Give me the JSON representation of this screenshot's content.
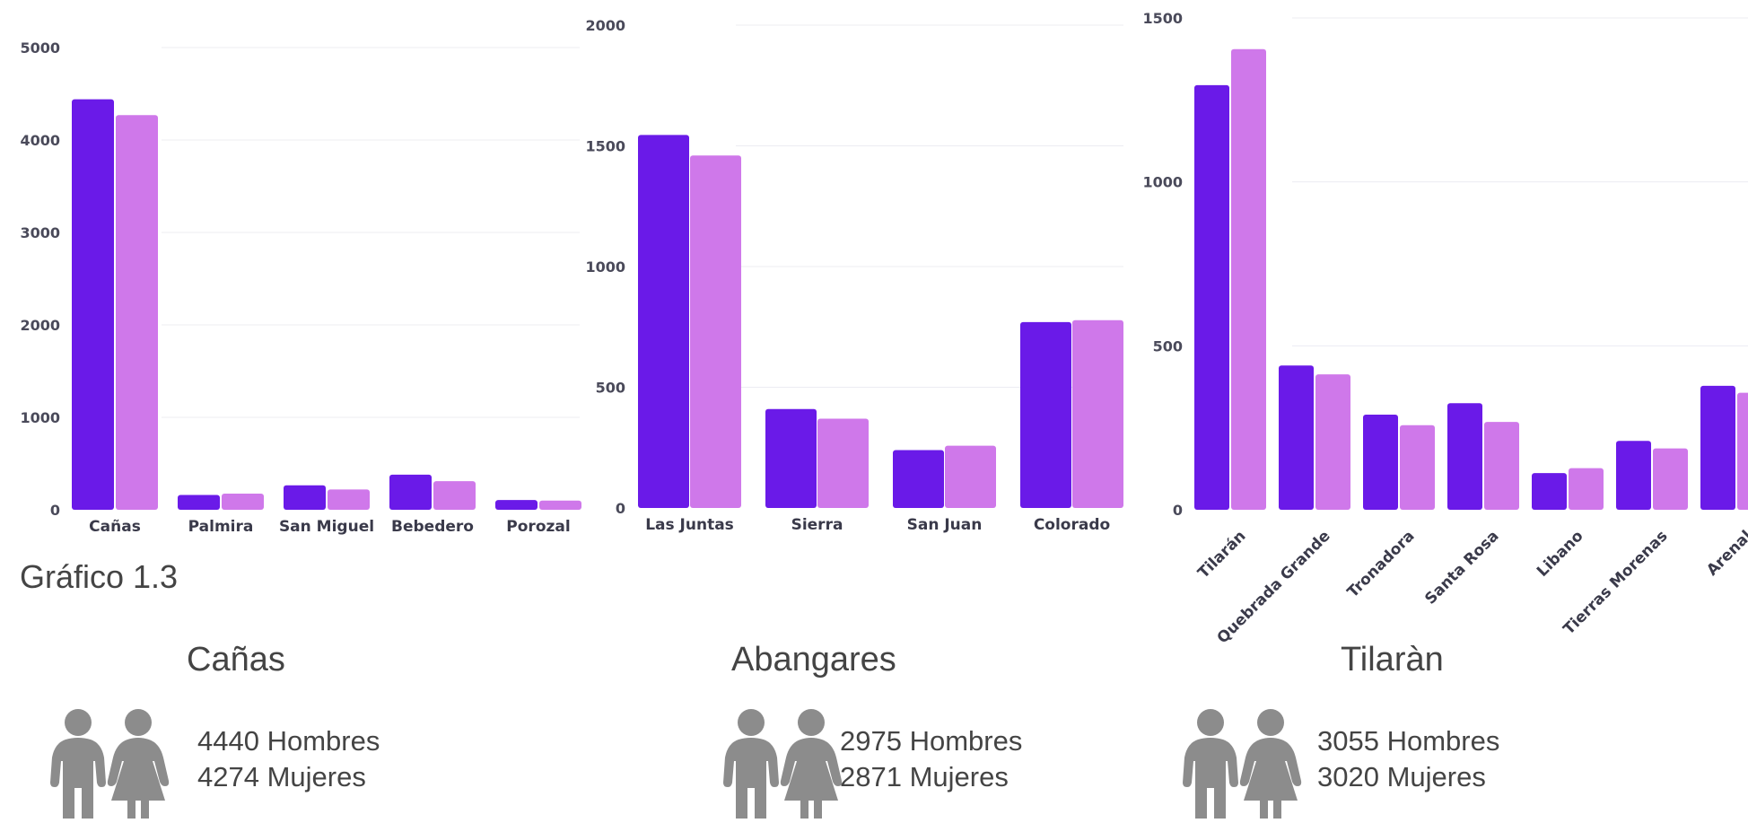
{
  "colors": {
    "hombres": "#6a1ae8",
    "mujeres": "#cf78ea",
    "text": "#444444",
    "icon": "#8c8c8c",
    "grid": "#ececf2"
  },
  "chart_data": [
    {
      "type": "bar",
      "categories": [
        "Cañas",
        "Palmira",
        "San Miguel",
        "Bebedero",
        "Porozal"
      ],
      "series": [
        {
          "values": [
            4440,
            160,
            265,
            380,
            105
          ]
        },
        {
          "values": [
            4270,
            175,
            220,
            310,
            100
          ]
        }
      ],
      "ylim": [
        0,
        5000
      ],
      "yticks": [
        "0",
        "1000",
        "2000",
        "3000",
        "4000",
        "5000"
      ],
      "grid": true
    },
    {
      "type": "bar",
      "categories": [
        "Las Juntas",
        "Sierra",
        "San Juan",
        "Colorado"
      ],
      "series": [
        {
          "values": [
            1545,
            410,
            240,
            770
          ]
        },
        {
          "values": [
            1460,
            370,
            258,
            778
          ]
        }
      ],
      "ylim": [
        0,
        2000
      ],
      "yticks": [
        "0",
        "500",
        "1000",
        "1500",
        "2000"
      ],
      "grid": true
    },
    {
      "type": "bar",
      "categories": [
        "Tilarán",
        "Quebrada Grande",
        "Tronadora",
        "Santa Rosa",
        "Libano",
        "Tierras Morenas",
        "Arenal"
      ],
      "series": [
        {
          "values": [
            1295,
            440,
            290,
            325,
            112,
            210,
            378
          ]
        },
        {
          "values": [
            1405,
            413,
            258,
            268,
            127,
            187,
            357
          ]
        }
      ],
      "ylim": [
        0,
        1500
      ],
      "yticks": [
        "0",
        "500",
        "1000",
        "1500"
      ],
      "grid": true
    }
  ],
  "caption": "Gráfico 1.3",
  "regions": [
    {
      "name": "Cañas",
      "men": "4440 Hombres",
      "women": "4274 Mujeres"
    },
    {
      "name": "Abangares",
      "men": "2975 Hombres",
      "women": "2871 Mujeres"
    },
    {
      "name": "Tilaràn",
      "men": "3055 Hombres",
      "women": "3020 Mujeres"
    }
  ]
}
